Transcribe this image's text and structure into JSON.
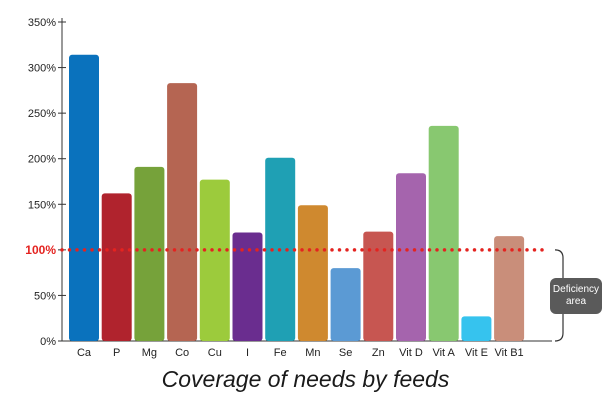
{
  "chart_data": {
    "type": "bar",
    "title": "Coverage of needs by feeds",
    "xlabel": "",
    "ylabel": "",
    "ylim": [
      0,
      350
    ],
    "yticks": [
      0,
      50,
      100,
      150,
      200,
      250,
      300,
      350
    ],
    "ytick_labels": [
      "0%",
      "50%",
      "100%",
      "150%",
      "200%",
      "250%",
      "300%",
      "350%"
    ],
    "categories": [
      "Ca",
      "P",
      "Mg",
      "Co",
      "Cu",
      "I",
      "Fe",
      "Mn",
      "Se",
      "Zn",
      "Vit D",
      "Vit A",
      "Vit E",
      "Vit B1"
    ],
    "values": [
      314,
      162,
      191,
      283,
      177,
      119,
      201,
      149,
      80,
      120,
      184,
      236,
      27,
      115
    ],
    "colors": [
      "#0a72bd",
      "#b0232d",
      "#76a23a",
      "#b56552",
      "#9ccb3c",
      "#6a2d8f",
      "#1fa0b4",
      "#cf892f",
      "#5b9ad4",
      "#c75651",
      "#a564ad",
      "#88c870",
      "#36c3ee",
      "#c98e7a"
    ],
    "reference_line": {
      "value": 100,
      "label": "100%",
      "color": "#e42320"
    },
    "annotation": {
      "line1": "Deficiency",
      "line2": "area"
    },
    "grid": false
  }
}
